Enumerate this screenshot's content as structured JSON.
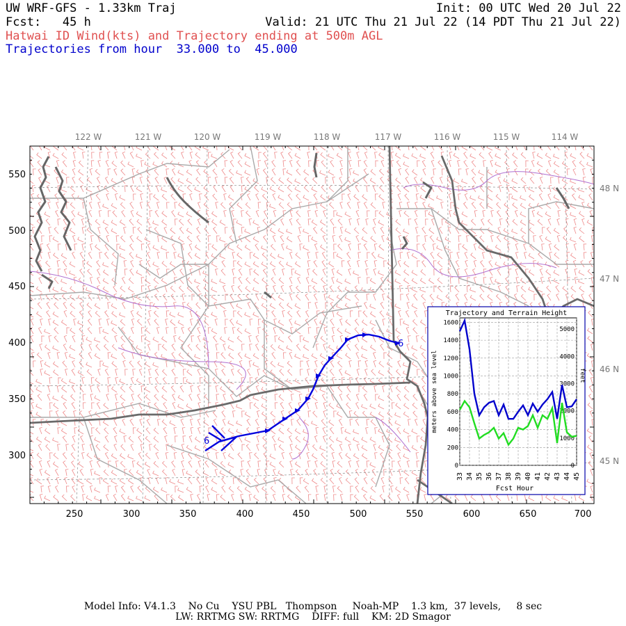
{
  "header": {
    "title": "UW WRF-GFS - 1.33km Traj",
    "init": "Init: 00 UTC Wed 20 Jul 22",
    "fcst": "Fcst:   45 h",
    "valid": "Valid: 21 UTC Thu 21 Jul 22 (14 PDT Thu 21 Jul 22)",
    "subtitle": "Hatwai ID Wind(kts) and Trajectory ending at 500m AGL",
    "traj_prefix": "Trajectories from hour",
    "traj_start": "33.000",
    "traj_to": "to",
    "traj_end": "45.000"
  },
  "map": {
    "top_lon_labels": [
      "122 W",
      "121 W",
      "120 W",
      "119 W",
      "118 W",
      "117 W",
      "116 W",
      "115 W",
      "114 W"
    ],
    "right_lat_labels": [
      "48 N",
      "47 N",
      "46 N",
      "45 N"
    ],
    "x_ticks": [
      "250",
      "300",
      "350",
      "400",
      "450",
      "500",
      "550",
      "600",
      "650",
      "700"
    ],
    "y_ticks": [
      "550",
      "500",
      "450",
      "400",
      "350",
      "300"
    ],
    "trajectory_start_label": "6",
    "trajectory_end_label": "6",
    "colors": {
      "wind_barbs": "#ee8888",
      "trajectory": "#0000dd",
      "state_borders": "#666666",
      "county_lines": "#aaaaaa",
      "rivers": "#aa66cc",
      "grid": "#888888"
    }
  },
  "inset": {
    "title": "Trajectory and Terrain Height",
    "xlabel": "Fcst Hour",
    "ylabel_left": "meters above sea level",
    "ylabel_right": "feet",
    "x_ticks": [
      "33",
      "34",
      "35",
      "36",
      "37",
      "38",
      "39",
      "40",
      "41",
      "42",
      "43",
      "44",
      "45"
    ],
    "y_left_ticks": [
      "0",
      "200",
      "400",
      "600",
      "800",
      "1000",
      "1200",
      "1400",
      "1600"
    ],
    "y_right_ticks": [
      "0",
      "1000",
      "2000",
      "3000",
      "4000",
      "5000"
    ]
  },
  "chart_data": {
    "type": "line",
    "title": "Trajectory and Terrain Height",
    "xlabel": "Fcst Hour",
    "ylabel": "meters above sea level",
    "xlim": [
      33,
      45
    ],
    "ylim": [
      0,
      1650
    ],
    "x": [
      33,
      33.5,
      34,
      34.5,
      35,
      35.5,
      36,
      36.5,
      37,
      37.5,
      38,
      38.5,
      39,
      39.5,
      40,
      40.5,
      41,
      41.5,
      42,
      42.5,
      43,
      43.5,
      44,
      44.5,
      45
    ],
    "series": [
      {
        "name": "trajectory",
        "color": "#0000cc",
        "values": [
          1500,
          1620,
          1300,
          800,
          560,
          650,
          700,
          720,
          560,
          680,
          520,
          520,
          600,
          670,
          560,
          690,
          600,
          680,
          740,
          820,
          520,
          900,
          650,
          660,
          740
        ]
      },
      {
        "name": "terrain",
        "color": "#22dd22",
        "values": [
          620,
          720,
          650,
          470,
          300,
          340,
          370,
          420,
          300,
          360,
          230,
          300,
          420,
          400,
          440,
          560,
          420,
          560,
          520,
          640,
          250,
          700,
          370,
          320,
          330
        ]
      }
    ]
  },
  "footer": {
    "line1": "Model Info: V4.1.3    No Cu    YSU PBL   Thompson     Noah-MP    1.3 km,  37 levels,     8 sec",
    "line2": "LW: RRTMG SW: RRTMG    DIFF: full    KM: 2D Smagor"
  }
}
